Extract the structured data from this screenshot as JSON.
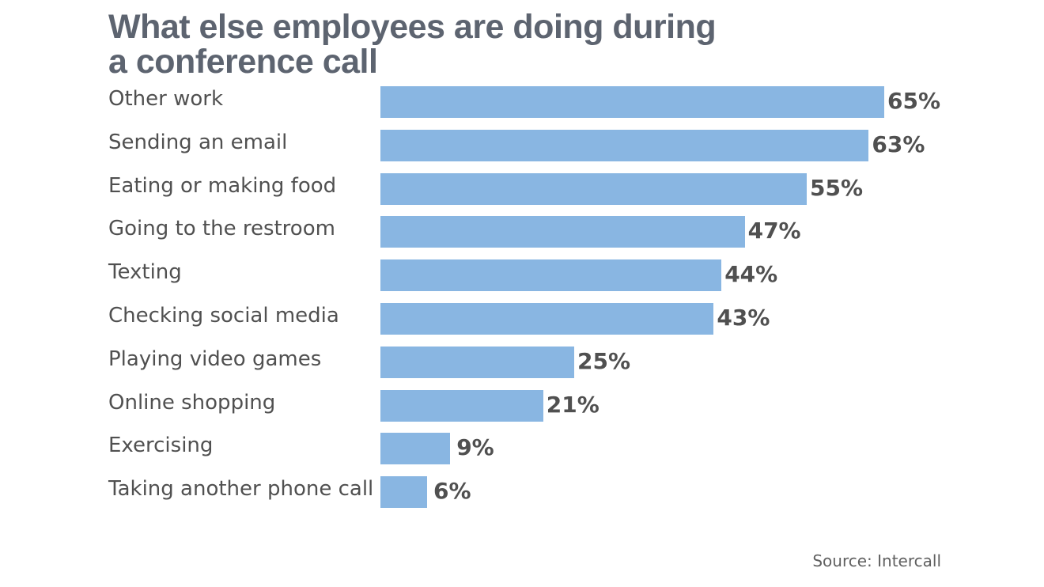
{
  "chart_data": {
    "type": "bar",
    "orientation": "horizontal",
    "title": "What else employees are doing during a conference call",
    "title_lines": [
      "What else employees are doing during",
      "a conference call"
    ],
    "categories": [
      "Other work",
      "Sending an email",
      "Eating or making food",
      "Going to the restroom",
      "Texting",
      "Checking social media",
      "Playing video games",
      "Online shopping",
      "Exercising",
      "Taking another phone call"
    ],
    "values": [
      65,
      63,
      55,
      47,
      44,
      43,
      25,
      21,
      9,
      6
    ],
    "value_labels": [
      "65%",
      "63%",
      "55%",
      "47%",
      "44%",
      "43%",
      "25%",
      "21%",
      "9%",
      "6%"
    ],
    "unit": "%",
    "xlabel": "",
    "ylabel": "",
    "xlim": [
      0,
      65
    ],
    "grid": false,
    "bar_color": "#89b6e2",
    "source": "Source: Intercall"
  }
}
